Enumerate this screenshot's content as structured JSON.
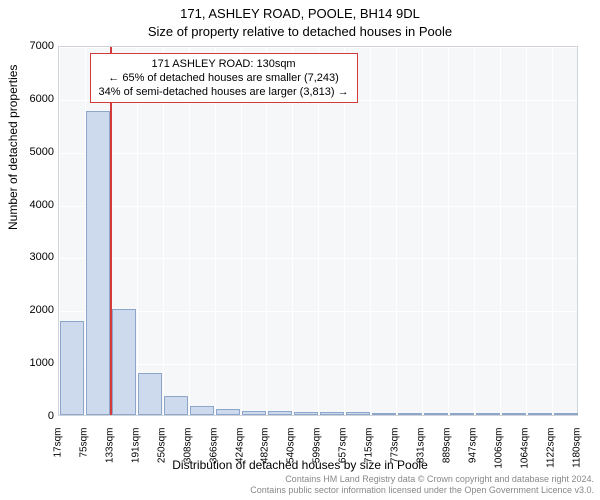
{
  "chart": {
    "type": "histogram",
    "title_main": "171, ASHLEY ROAD, POOLE, BH14 9DL",
    "title_sub": "Size of property relative to detached houses in Poole",
    "title_fontsize": 13,
    "xlabel": "Distribution of detached houses by size in Poole",
    "ylabel": "Number of detached properties",
    "label_fontsize": 12,
    "background_color": "#ffffff",
    "plot_bg_color": "#f6f7f9",
    "grid_color": "#ffffff",
    "axis_border_color": "#cfd3da",
    "bar_fill_color": "#cdd9ec",
    "bar_edge_color": "#8ea6c9",
    "marker_color": "#d43a3a",
    "tick_fontsize": 11,
    "xtick_fontsize": 10,
    "ylim": [
      0,
      7000
    ],
    "ytick_step": 1000,
    "yticks": [
      0,
      1000,
      2000,
      3000,
      4000,
      5000,
      6000,
      7000
    ],
    "xgrid_step_label": 58,
    "xtick_labels": [
      "17sqm",
      "75sqm",
      "133sqm",
      "191sqm",
      "250sqm",
      "308sqm",
      "366sqm",
      "424sqm",
      "482sqm",
      "540sqm",
      "599sqm",
      "657sqm",
      "715sqm",
      "773sqm",
      "831sqm",
      "889sqm",
      "947sqm",
      "1006sqm",
      "1064sqm",
      "1122sqm",
      "1180sqm"
    ],
    "bars": [
      {
        "x_sqm": 46,
        "count": 1780
      },
      {
        "x_sqm": 104,
        "count": 5750
      },
      {
        "x_sqm": 162,
        "count": 2000
      },
      {
        "x_sqm": 220,
        "count": 800
      },
      {
        "x_sqm": 279,
        "count": 360
      },
      {
        "x_sqm": 337,
        "count": 180
      },
      {
        "x_sqm": 395,
        "count": 120
      },
      {
        "x_sqm": 453,
        "count": 80
      },
      {
        "x_sqm": 511,
        "count": 70
      },
      {
        "x_sqm": 570,
        "count": 60
      },
      {
        "x_sqm": 628,
        "count": 50
      },
      {
        "x_sqm": 686,
        "count": 60
      },
      {
        "x_sqm": 744,
        "count": 10
      },
      {
        "x_sqm": 802,
        "count": 10
      },
      {
        "x_sqm": 860,
        "count": 10
      },
      {
        "x_sqm": 918,
        "count": 10
      },
      {
        "x_sqm": 977,
        "count": 10
      },
      {
        "x_sqm": 1035,
        "count": 10
      },
      {
        "x_sqm": 1093,
        "count": 10
      },
      {
        "x_sqm": 1151,
        "count": 10
      }
    ],
    "marker": {
      "x_sqm": 130
    },
    "x_domain": [
      17,
      1180
    ],
    "callout": {
      "line1": "171 ASHLEY ROAD: 130sqm",
      "line2": "← 65% of detached houses are smaller (7,243)",
      "line3": "34% of semi-detached houses are larger (3,813) →",
      "border_color": "#d43a3a",
      "fontsize": 11
    }
  },
  "footer": {
    "line1": "Contains HM Land Registry data © Crown copyright and database right 2024.",
    "line2": "Contains public sector information licensed under the Open Government Licence v3.0.",
    "fontsize": 9,
    "color": "#888888"
  }
}
